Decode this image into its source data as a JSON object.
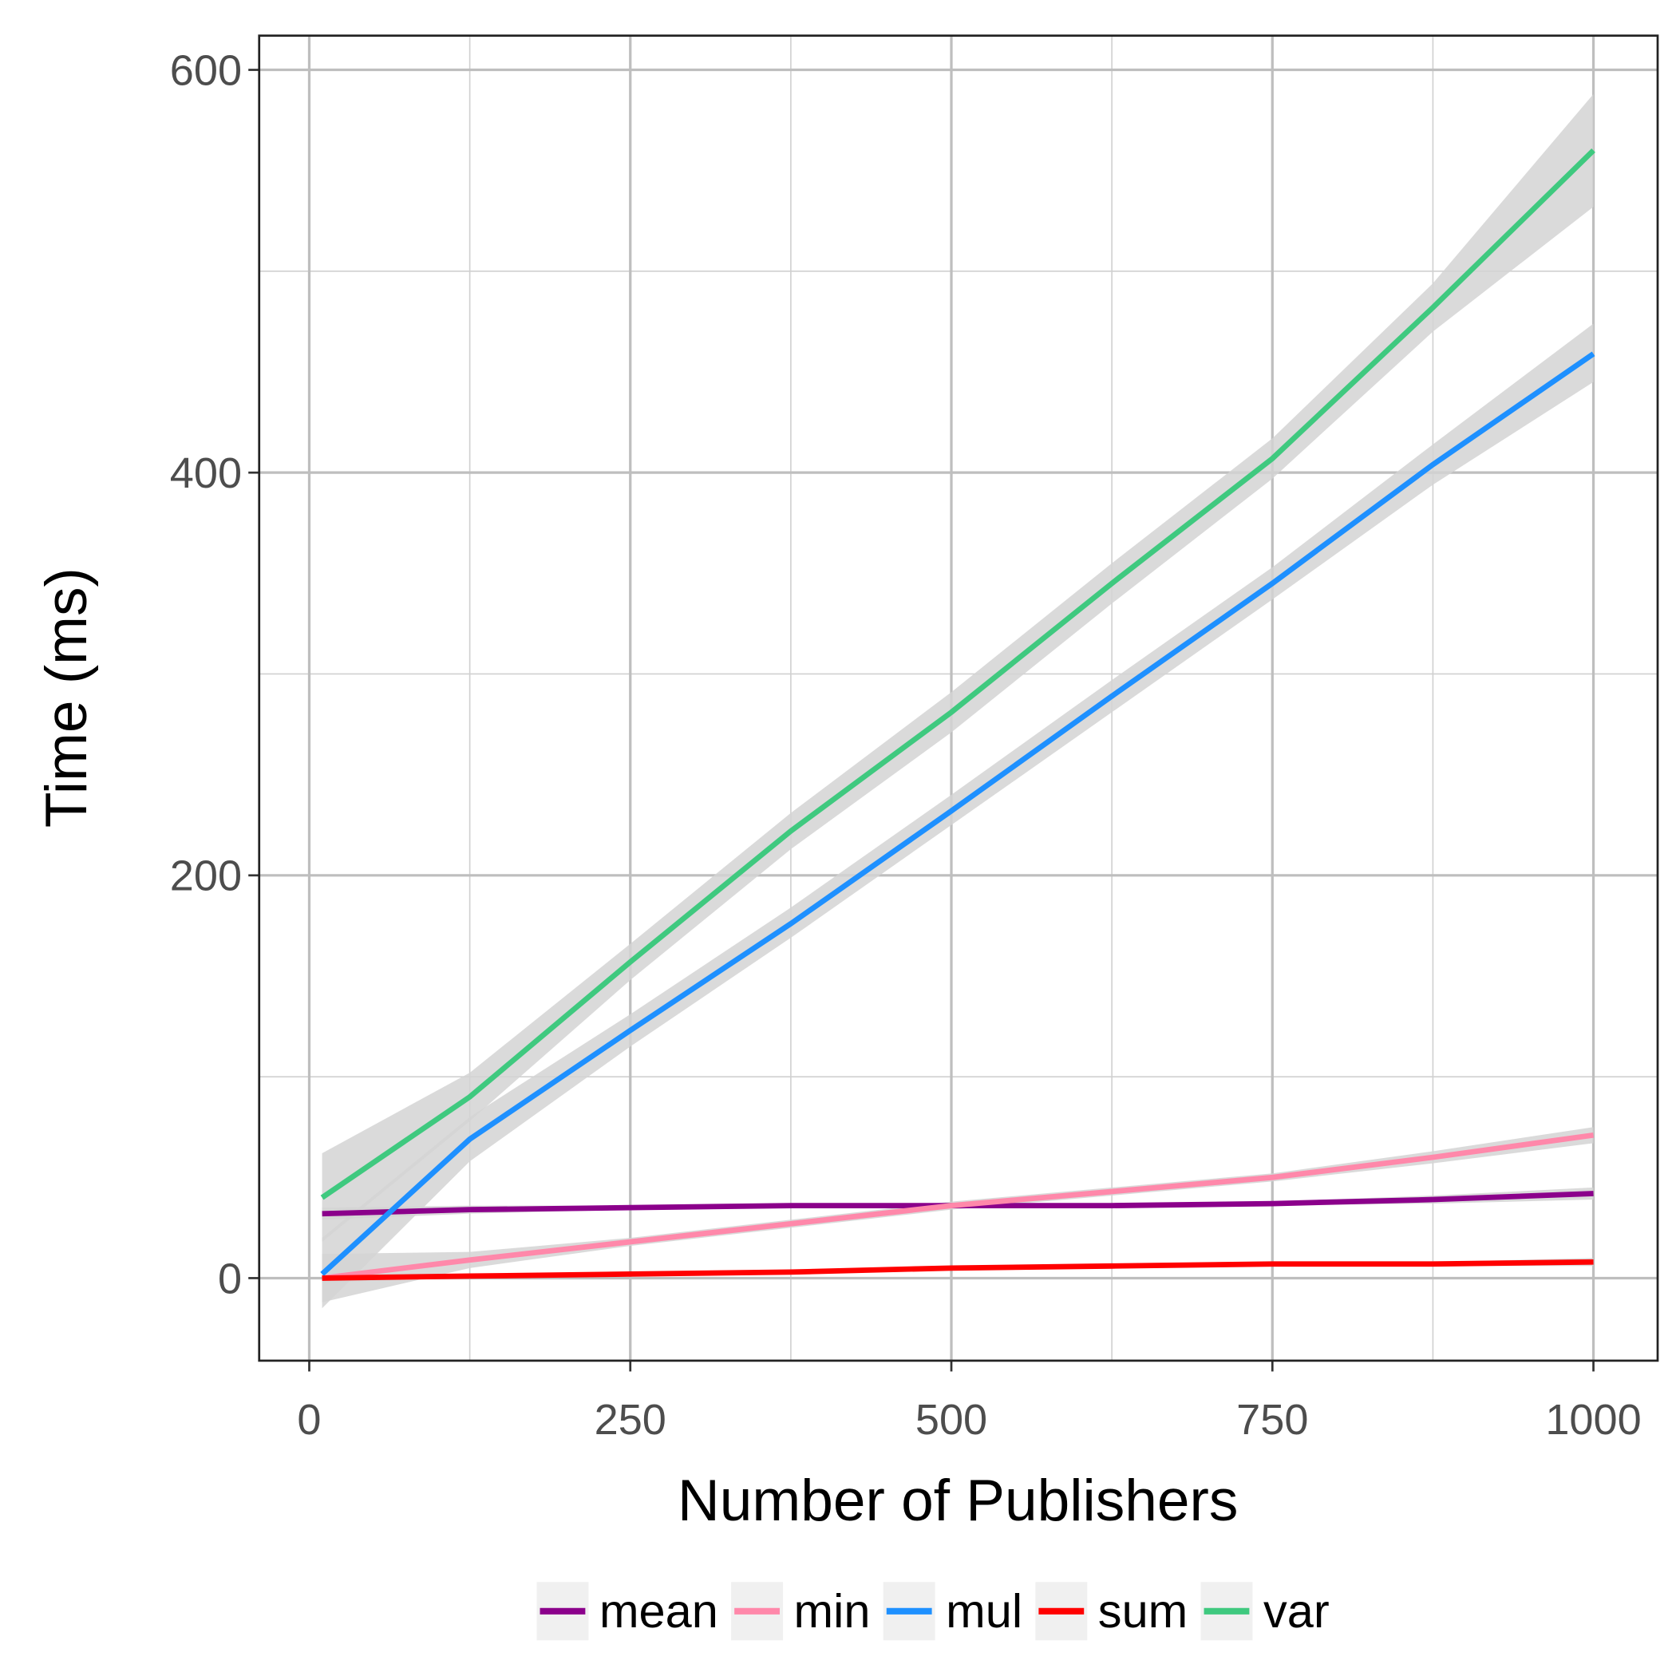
{
  "chart_data": {
    "type": "line",
    "xlabel": "Number of Publishers",
    "ylabel": "Time (ms)",
    "x": [
      10,
      125,
      250,
      375,
      500,
      625,
      750,
      875,
      1000
    ],
    "series": [
      {
        "name": "mean",
        "color": "#8b008b",
        "values": [
          32,
          34,
          35,
          36,
          36,
          36,
          37,
          39,
          42
        ],
        "lower": [
          29,
          32,
          34,
          35,
          35,
          35,
          36,
          37,
          39
        ],
        "upper": [
          35,
          36,
          36,
          37,
          37,
          37,
          38,
          41,
          45
        ]
      },
      {
        "name": "min",
        "color": "#ff88aa",
        "values": [
          0,
          9,
          18,
          27,
          36,
          43,
          50,
          60,
          71
        ],
        "lower": [
          -12,
          5,
          16,
          25,
          34,
          41,
          48,
          57,
          67
        ],
        "upper": [
          12,
          13,
          20,
          29,
          38,
          45,
          52,
          63,
          75
        ]
      },
      {
        "name": "mul",
        "color": "#1e90ff",
        "values": [
          2,
          69,
          123,
          176,
          232,
          289,
          345,
          404,
          459
        ],
        "lower": [
          -15,
          58,
          115,
          169,
          225,
          281,
          337,
          394,
          445
        ],
        "upper": [
          20,
          80,
          131,
          184,
          240,
          297,
          353,
          414,
          474
        ]
      },
      {
        "name": "sum",
        "color": "#ff0000",
        "values": [
          0,
          1,
          2,
          3,
          5,
          6,
          7,
          7,
          8
        ],
        "lower": [
          -2,
          0,
          1,
          2,
          4,
          5,
          6,
          6,
          6
        ],
        "upper": [
          2,
          2,
          3,
          4,
          6,
          7,
          8,
          8,
          10
        ]
      },
      {
        "name": "var",
        "color": "#3fc97f",
        "values": [
          40,
          90,
          157,
          222,
          281,
          345,
          407,
          482,
          560
        ],
        "lower": [
          18,
          78,
          148,
          213,
          271,
          335,
          397,
          470,
          532
        ],
        "upper": [
          62,
          102,
          166,
          231,
          291,
          355,
          417,
          494,
          588
        ]
      }
    ],
    "band_color": "#d3d3d3",
    "xlim": [
      -39,
      1050
    ],
    "ylim": [
      -41,
      617
    ],
    "xticks": [
      0,
      250,
      500,
      750,
      1000
    ],
    "yticks": [
      0,
      200,
      400,
      600
    ],
    "xminor": [
      125,
      375,
      625,
      875
    ],
    "yminor": [
      100,
      300,
      500
    ],
    "grid": true,
    "legend": "bottom"
  }
}
